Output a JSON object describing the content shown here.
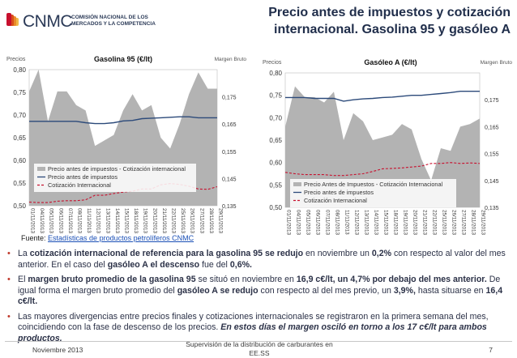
{
  "logo": {
    "brand": "CNMC",
    "org_lines": [
      "COMISIÓN NACIONAL DE LOS",
      "MERCADOS Y LA COMPETENCIA"
    ],
    "colors": [
      "#c8102e",
      "#d94f1a",
      "#e88a2a",
      "#f0b84a"
    ]
  },
  "title_lines": [
    "Precio antes de impuestos y cotización",
    "internacional.  Gasolina 95 y gasóleo A"
  ],
  "colors": {
    "area": "#b3b3b3",
    "pai": "#2c4a7a",
    "cotizacion": "#c8102e",
    "title": "#1f2d4a",
    "bullet": "#c0392b"
  },
  "chart_data": [
    {
      "type": "area",
      "title": "Gasolina 95 (€/lt)",
      "y_left_label": "Precios",
      "y_right_label": "Margen Bruto",
      "ylim_left": [
        0.5,
        0.8
      ],
      "yticks_left": [
        "0,50",
        "0,55",
        "0,60",
        "0,65",
        "0,70",
        "0,75",
        "0,80"
      ],
      "ylim_right": [
        0.135,
        0.185
      ],
      "yticks_right": [
        "0,135",
        "0,145",
        "0,155",
        "0,165",
        "0,175"
      ],
      "categories": [
        "01/11/2013",
        "04/11/2013",
        "05/11/2013",
        "06/11/2013",
        "07/11/2013",
        "08/11/2013",
        "11/11/2013",
        "12/11/2013",
        "13/11/2013",
        "14/11/2013",
        "15/11/2013",
        "18/11/2013",
        "19/11/2013",
        "20/11/2013",
        "21/11/2013",
        "22/11/2013",
        "25/11/2013",
        "26/11/2013",
        "27/11/2013",
        "28/11/2013",
        "29/11/2013"
      ],
      "series": [
        {
          "name": "Precio antes de impuestos - Cotización internacional",
          "kind": "area",
          "axis": "right",
          "values": [
            0.177,
            0.185,
            0.166,
            0.177,
            0.177,
            0.172,
            0.17,
            0.157,
            0.159,
            0.161,
            0.17,
            0.176,
            0.17,
            0.172,
            0.16,
            0.156,
            0.165,
            0.176,
            0.184,
            0.178,
            0.178
          ]
        },
        {
          "name": "Precio antes de impuestos",
          "kind": "line",
          "axis": "left",
          "values": [
            0.686,
            0.686,
            0.686,
            0.686,
            0.686,
            0.686,
            0.683,
            0.681,
            0.681,
            0.683,
            0.687,
            0.688,
            0.692,
            0.693,
            0.694,
            0.695,
            0.696,
            0.696,
            0.694,
            0.694,
            0.694
          ]
        },
        {
          "name": "Cotización Internacional",
          "kind": "dashed",
          "axis": "left",
          "values": [
            0.508,
            0.507,
            0.507,
            0.51,
            0.511,
            0.511,
            0.513,
            0.523,
            0.523,
            0.527,
            0.53,
            0.532,
            0.537,
            0.537,
            0.546,
            0.549,
            0.547,
            0.543,
            0.537,
            0.536,
            0.542
          ]
        }
      ]
    },
    {
      "type": "area",
      "title": "Gasóleo A (€/lt)",
      "y_left_label": "Precios",
      "y_right_label": "Margen Bruto",
      "ylim_left": [
        0.5,
        0.8
      ],
      "yticks_left": [
        "0,50",
        "0,55",
        "0,60",
        "0,65",
        "0,70",
        "0,75",
        "0,80"
      ],
      "ylim_right": [
        0.135,
        0.185
      ],
      "yticks_right": [
        "0,135",
        "0,145",
        "0,155",
        "0,165",
        "0,175"
      ],
      "categories": [
        "01/11/2013",
        "04/11/2013",
        "05/11/2013",
        "06/11/2013",
        "07/11/2013",
        "08/11/2013",
        "11/11/2013",
        "12/11/2013",
        "13/11/2013",
        "14/11/2013",
        "15/11/2013",
        "18/11/2013",
        "19/11/2013",
        "20/11/2013",
        "21/11/2013",
        "22/11/2013",
        "25/11/2013",
        "26/11/2013",
        "27/11/2013",
        "28/11/2013",
        "29/11/2013"
      ],
      "series": [
        {
          "name": "Precio Antes de Impuestos - Cotización Internacional",
          "kind": "area",
          "axis": "right",
          "values": [
            0.165,
            0.18,
            0.176,
            0.176,
            0.174,
            0.178,
            0.16,
            0.17,
            0.167,
            0.16,
            0.161,
            0.162,
            0.166,
            0.164,
            0.153,
            0.145,
            0.157,
            0.156,
            0.165,
            0.166,
            0.168
          ]
        },
        {
          "name": "Precio antes de impuestos",
          "kind": "line",
          "axis": "left",
          "values": [
            0.745,
            0.745,
            0.745,
            0.743,
            0.743,
            0.743,
            0.737,
            0.74,
            0.742,
            0.743,
            0.745,
            0.746,
            0.748,
            0.75,
            0.75,
            0.752,
            0.754,
            0.756,
            0.759,
            0.759,
            0.759
          ]
        },
        {
          "name": "Cotización Internacional",
          "kind": "dashed",
          "axis": "left",
          "values": [
            0.578,
            0.575,
            0.573,
            0.573,
            0.573,
            0.571,
            0.571,
            0.573,
            0.575,
            0.58,
            0.586,
            0.587,
            0.588,
            0.59,
            0.592,
            0.598,
            0.598,
            0.6,
            0.598,
            0.599,
            0.598
          ]
        }
      ]
    }
  ],
  "source": {
    "prefix": "Fuente: ",
    "link": "Estadísticas de productos petrolíferos CNMC"
  },
  "bullets": [
    [
      {
        "t": "La ",
        "b": false
      },
      {
        "t": "cotización internacional de referencia para la gasolina 95 se redujo",
        "b": true
      },
      {
        "t": " en noviembre un ",
        "b": false
      },
      {
        "t": "0,2%",
        "b": true
      },
      {
        "t": " con respecto al valor del mes anterior. En el caso del ",
        "b": false
      },
      {
        "t": "gasóleo A el descenso",
        "b": true
      },
      {
        "t": " fue del ",
        "b": false
      },
      {
        "t": "0,6%.",
        "b": true
      }
    ],
    [
      {
        "t": "El ",
        "b": false
      },
      {
        "t": "margen bruto promedio de la gasolina 95",
        "b": true
      },
      {
        "t": " se situó en noviembre en ",
        "b": false
      },
      {
        "t": "16,9 c€/lt, un 4,7% por debajo del mes anterior.",
        "b": true
      },
      {
        "t": " De igual forma el margen bruto promedio del ",
        "b": false
      },
      {
        "t": "gasóleo A se redujo",
        "b": true
      },
      {
        "t": " con respecto al del mes previo, un ",
        "b": false
      },
      {
        "t": "3,9%,",
        "b": true
      },
      {
        "t": " hasta situarse en ",
        "b": false
      },
      {
        "t": "16,4 c€/lt.",
        "b": true
      }
    ],
    [
      {
        "t": "Las mayores divergencias entre precios finales y cotizaciones internacionales se registraron en la primera semana del mes, coincidiendo con la fase de descenso de los precios. ",
        "b": false
      },
      {
        "t": "En estos días el margen osciló en torno a los 17 c€/lt para ambos productos.",
        "b": true,
        "i": true
      }
    ]
  ],
  "footer": {
    "left": "Noviembre 2013",
    "center": "Supervisión de la distribución de carburantes en EE.SS",
    "page": "7"
  }
}
